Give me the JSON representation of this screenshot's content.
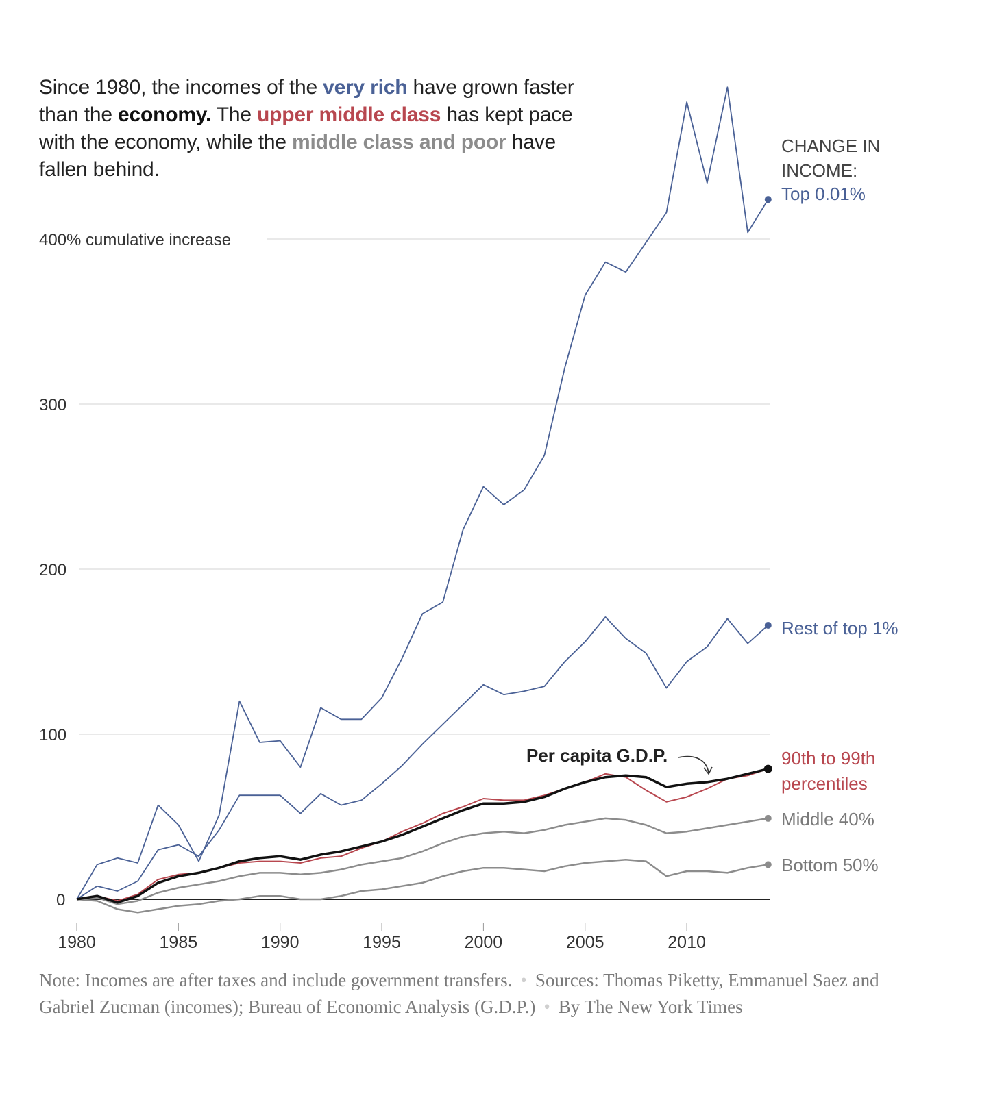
{
  "headline": {
    "part1": "Since 1980, the incomes of the ",
    "very_rich": "very rich",
    "part2": " have grown faster than the ",
    "economy": "economy.",
    "part3": " The ",
    "upper_middle": "upper middle class",
    "part4": " has kept pace with the economy, while the ",
    "middle_poor": "middle class and poor",
    "part5": " have fallen behind."
  },
  "colors": {
    "very_rich": "#4a6196",
    "upper_middle": "#b8474f",
    "economy": "#111111",
    "middle_poor": "#8c8c8c",
    "grid": "#e2e2e2"
  },
  "footer": {
    "note": "Note: Incomes are after taxes and include government transfers.",
    "sources": "Sources: Thomas Piketty, Emmanuel Saez and Gabriel Zucman (incomes); Bureau of Economic Analysis (G.D.P.)",
    "byline": "By The New York Times"
  },
  "chart_data": {
    "type": "line",
    "title": "Since 1980, the incomes of the very rich have grown faster than the economy. The upper middle class has kept pace with the economy, while the middle class and poor have fallen behind.",
    "xlabel": "",
    "ylabel": "400% cumulative increase",
    "legend_title": "CHANGE IN INCOME:",
    "legend_placement": "right (direct labels at line ends)",
    "grid": true,
    "xlim": [
      1980,
      2014
    ],
    "ylim": [
      -10,
      500
    ],
    "yticks": [
      0,
      100,
      200,
      300,
      400
    ],
    "ytick_labels": [
      "0",
      "100",
      "200",
      "300",
      "400% cumulative increase"
    ],
    "xticks": [
      1980,
      1985,
      1990,
      1995,
      2000,
      2005,
      2010
    ],
    "xtick_labels": [
      "1980",
      "1985",
      "1990",
      "1995",
      "2000",
      "2005",
      "2010"
    ],
    "x": [
      1980,
      1981,
      1982,
      1983,
      1984,
      1985,
      1986,
      1987,
      1988,
      1989,
      1990,
      1991,
      1992,
      1993,
      1994,
      1995,
      1996,
      1997,
      1998,
      1999,
      2000,
      2001,
      2002,
      2003,
      2004,
      2005,
      2006,
      2007,
      2008,
      2009,
      2010,
      2011,
      2012,
      2013,
      2014
    ],
    "annotation": "Per capita G.D.P.",
    "series": [
      {
        "key": "top001",
        "name": "Top 0.01%",
        "color": "#4a6196",
        "label_color": "#4a6196",
        "values": [
          0,
          21,
          25,
          22,
          57,
          45,
          23,
          51,
          120,
          95,
          96,
          80,
          116,
          109,
          109,
          122,
          146,
          173,
          180,
          224,
          250,
          239,
          248,
          269,
          322,
          366,
          386,
          380,
          398,
          416,
          483,
          434,
          492,
          404,
          424
        ]
      },
      {
        "key": "rest1",
        "name": "Rest of top 1%",
        "color": "#4a6196",
        "label_color": "#4a6196",
        "values": [
          0,
          8,
          5,
          11,
          30,
          33,
          26,
          42,
          63,
          63,
          63,
          52,
          64,
          57,
          60,
          70,
          81,
          94,
          106,
          118,
          130,
          124,
          126,
          129,
          144,
          156,
          171,
          158,
          149,
          128,
          144,
          153,
          170,
          155,
          166
        ]
      },
      {
        "key": "p90",
        "name": "90th to 99th percentiles",
        "color": "#b8474f",
        "label_color": "#b8474f",
        "values": [
          0,
          2,
          -1,
          3,
          12,
          15,
          16,
          19,
          22,
          23,
          23,
          22,
          25,
          26,
          31,
          35,
          41,
          46,
          52,
          56,
          61,
          60,
          60,
          63,
          67,
          71,
          76,
          74,
          66,
          59,
          62,
          67,
          73,
          75,
          79
        ]
      },
      {
        "key": "gdp",
        "name": "Per capita G.D.P.",
        "color": "#111111",
        "label_color": "#111111",
        "values": [
          0,
          2,
          -2,
          2,
          10,
          14,
          16,
          19,
          23,
          25,
          26,
          24,
          27,
          29,
          32,
          35,
          39,
          44,
          49,
          54,
          58,
          58,
          59,
          62,
          67,
          71,
          74,
          75,
          74,
          68,
          70,
          71,
          73,
          76,
          79
        ]
      },
      {
        "key": "mid40",
        "name": "Middle 40%",
        "color": "#8c8c8c",
        "label_color": "#7a7a7a",
        "values": [
          0,
          1,
          -3,
          -1,
          4,
          7,
          9,
          11,
          14,
          16,
          16,
          15,
          16,
          18,
          21,
          23,
          25,
          29,
          34,
          38,
          40,
          41,
          40,
          42,
          45,
          47,
          49,
          48,
          45,
          40,
          41,
          43,
          45,
          47,
          49
        ]
      },
      {
        "key": "bot50",
        "name": "Bottom 50%",
        "color": "#8c8c8c",
        "label_color": "#7a7a7a",
        "values": [
          0,
          -1,
          -6,
          -8,
          -6,
          -4,
          -3,
          -1,
          0,
          2,
          2,
          0,
          0,
          2,
          5,
          6,
          8,
          10,
          14,
          17,
          19,
          19,
          18,
          17,
          20,
          22,
          23,
          24,
          23,
          14,
          17,
          17,
          16,
          19,
          21
        ]
      }
    ]
  }
}
